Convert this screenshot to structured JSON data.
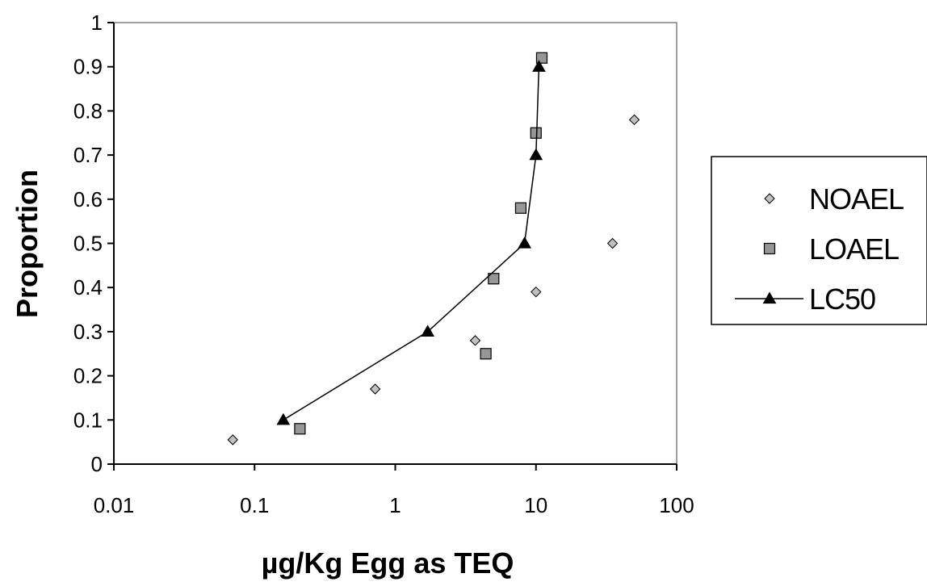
{
  "chart_data": {
    "type": "scatter",
    "title": "",
    "xlabel": "µg/Kg Egg as TEQ",
    "ylabel": "Proportion",
    "x_scale": "log",
    "xlim": [
      0.01,
      100
    ],
    "ylim": [
      0,
      1
    ],
    "x_ticks": [
      "0.01",
      "0.1",
      "1",
      "10",
      "100"
    ],
    "y_ticks": [
      "0",
      "0.1",
      "0.2",
      "0.3",
      "0.4",
      "0.5",
      "0.6",
      "0.7",
      "0.8",
      "0.9",
      "1"
    ],
    "grid": false,
    "legend": "right",
    "series": [
      {
        "name": "NOAEL",
        "marker": "diamond",
        "line": false,
        "color": "#c0c0c0",
        "points": [
          [
            0.07,
            0.055
          ],
          [
            0.72,
            0.17
          ],
          [
            3.7,
            0.28
          ],
          [
            10,
            0.39
          ],
          [
            35,
            0.5
          ],
          [
            50,
            0.78
          ]
        ]
      },
      {
        "name": "LOAEL",
        "marker": "square",
        "line": false,
        "color": "#969696",
        "points": [
          [
            0.21,
            0.08
          ],
          [
            4.4,
            0.25
          ],
          [
            5,
            0.42
          ],
          [
            7.8,
            0.58
          ],
          [
            10,
            0.75
          ],
          [
            11,
            0.92
          ]
        ]
      },
      {
        "name": "LC50",
        "marker": "triangle",
        "line": true,
        "color": "#000000",
        "points": [
          [
            0.16,
            0.1
          ],
          [
            1.7,
            0.3
          ],
          [
            8.3,
            0.5
          ],
          [
            10,
            0.7
          ],
          [
            10.5,
            0.9
          ]
        ]
      }
    ]
  }
}
